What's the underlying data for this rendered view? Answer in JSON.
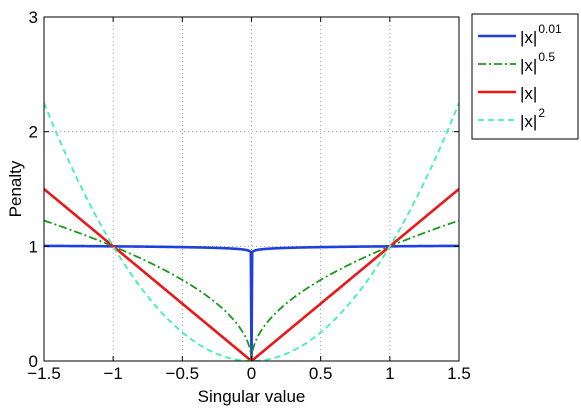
{
  "chart_data": {
    "type": "line",
    "title": "",
    "xlabel": "Singular value",
    "ylabel": "Penalty",
    "xlim": [
      -1.5,
      1.5
    ],
    "ylim": [
      0,
      3
    ],
    "xticks": [
      "-1.5",
      "-1",
      "-0.5",
      "0",
      "0.5",
      "1",
      "1.5"
    ],
    "yticks": [
      "0",
      "1",
      "2",
      "3"
    ],
    "grid": true,
    "legend_position": "outside-top-right",
    "series": [
      {
        "name": "|x|",
        "exponent": "0.01",
        "color": "#1f3fe0",
        "style": "solid",
        "p": 0.01
      },
      {
        "name": "|x|",
        "exponent": "0.5",
        "color": "#1a9a1a",
        "style": "dashdot",
        "p": 0.5
      },
      {
        "name": "|x|",
        "exponent": "",
        "color": "#e81818",
        "style": "solid",
        "p": 1
      },
      {
        "name": "|x|",
        "exponent": "2",
        "color": "#3cf2b4",
        "style": "dashed",
        "p": 2
      }
    ],
    "x": [
      -1.5,
      -1.25,
      -1.0,
      -0.75,
      -0.5,
      -0.25,
      -0.1,
      -0.04,
      0.0,
      0.04,
      0.1,
      0.25,
      0.5,
      0.75,
      1.0,
      1.25,
      1.5
    ],
    "values": {
      "p0.01": [
        1.04,
        1.03,
        1.0,
        0.99,
        0.97,
        0.92,
        0.86,
        0.74,
        0.0,
        0.74,
        0.86,
        0.92,
        0.97,
        0.99,
        1.0,
        1.03,
        1.04
      ],
      "p0.5": [
        1.22,
        1.12,
        1.0,
        0.87,
        0.71,
        0.5,
        0.32,
        0.2,
        0.0,
        0.2,
        0.32,
        0.5,
        0.71,
        0.87,
        1.0,
        1.12,
        1.22
      ],
      "p1": [
        1.5,
        1.25,
        1.0,
        0.75,
        0.5,
        0.25,
        0.1,
        0.04,
        0.0,
        0.04,
        0.1,
        0.25,
        0.5,
        0.75,
        1.0,
        1.25,
        1.5
      ],
      "p2": [
        2.25,
        1.56,
        1.0,
        0.56,
        0.25,
        0.06,
        0.01,
        0.0,
        0.0,
        0.0,
        0.01,
        0.06,
        0.25,
        0.56,
        1.0,
        1.56,
        2.25
      ]
    }
  }
}
